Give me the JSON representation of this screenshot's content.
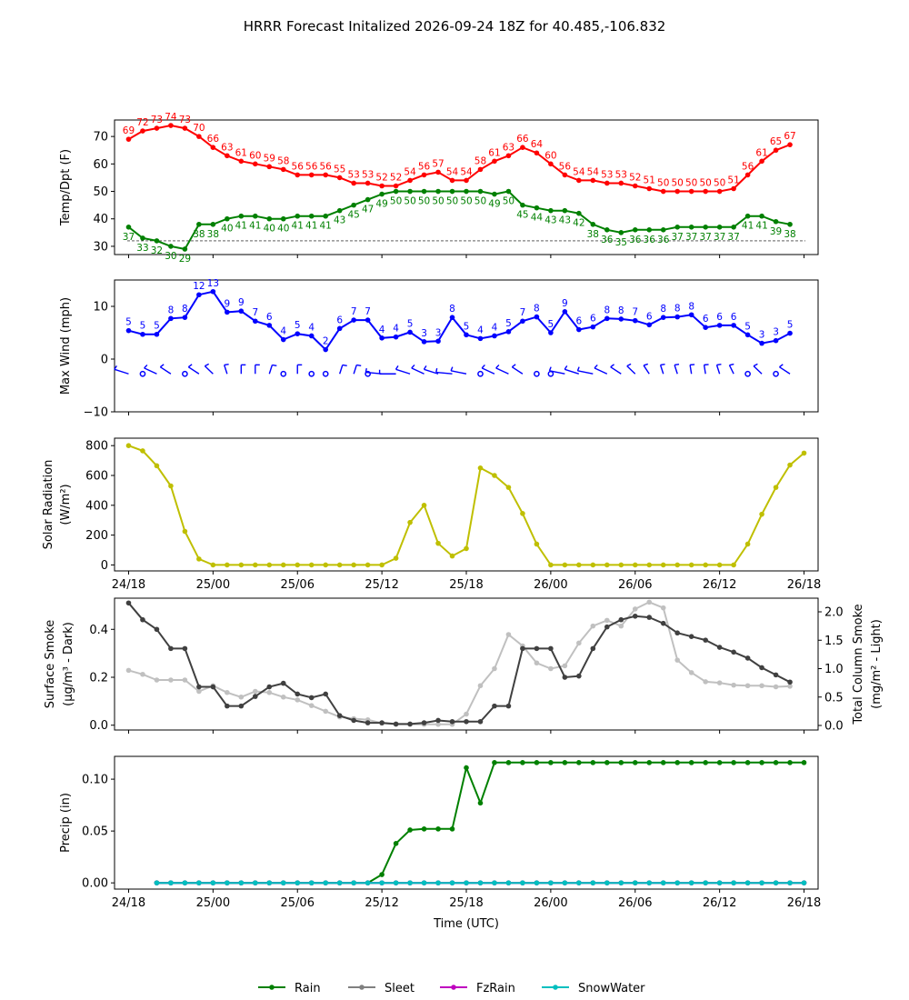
{
  "title": "HRRR Forecast Initalized 2026-09-24 18Z for 40.485,-106.832",
  "colors": {
    "temp": "#ff0000",
    "dewpoint": "#008000",
    "wind": "#0000ff",
    "solar": "#bfbf00",
    "smoke_surface": "#404040",
    "smoke_column": "#c0c0c0",
    "rain": "#008000",
    "sleet": "#808080",
    "fzrain": "#bf00bf",
    "snowwater": "#00bfbf"
  },
  "chart_data": [
    {
      "type": "line",
      "panel": "temp",
      "ylabel": "Temp/Dpt (F)",
      "ylim": [
        27,
        76
      ],
      "yticks": [
        "30",
        "40",
        "50",
        "60",
        "70"
      ],
      "x_start_hour": 0,
      "series": [
        {
          "key": "temp",
          "values": [
            69,
            72,
            73,
            74,
            73,
            70,
            66,
            63,
            61,
            60,
            59,
            58,
            56,
            56,
            56,
            55,
            53,
            53,
            52,
            52,
            54,
            56,
            57,
            54,
            54,
            58,
            61,
            63,
            66,
            64,
            60,
            56,
            54,
            54,
            53,
            53,
            52,
            51,
            50,
            50,
            50,
            50,
            50,
            51,
            56,
            61,
            65,
            67
          ]
        },
        {
          "key": "dewpoint",
          "values": [
            37,
            33,
            32,
            30,
            29,
            38,
            38,
            40,
            41,
            41,
            40,
            40,
            41,
            41,
            41,
            43,
            45,
            47,
            49,
            50,
            50,
            50,
            50,
            50,
            50,
            50,
            49,
            50,
            45,
            44,
            43,
            43,
            42,
            38,
            36,
            35,
            36,
            36,
            36,
            37,
            37,
            37,
            37,
            37,
            41,
            41,
            39,
            38
          ]
        }
      ],
      "labels": {
        "temp": [
          "69",
          "72",
          "73",
          "74",
          "73",
          "70",
          "66",
          "63",
          "61",
          "60",
          "59",
          "58",
          "56",
          "56",
          "56",
          "55",
          "53",
          "53",
          "52",
          "52",
          "54",
          "56",
          "57",
          "54",
          "54",
          "58",
          "61",
          "63",
          "66",
          "64",
          "60",
          "56",
          "54",
          "54",
          "53",
          "53",
          "52",
          "51",
          "50",
          "50",
          "50",
          "50",
          "50",
          "51",
          "56",
          "61",
          "65",
          "67"
        ],
        "dewpoint": [
          "37",
          "33",
          "32",
          "30",
          "29",
          "38",
          "38",
          "40",
          "41",
          "41",
          "40",
          "40",
          "41",
          "41",
          "41",
          "43",
          "45",
          "47",
          "49",
          "50",
          "50",
          "50",
          "50",
          "50",
          "50",
          "50",
          "49",
          "50",
          "45",
          "44",
          "43",
          "43",
          "42",
          "38",
          "36",
          "35",
          "36",
          "36",
          "36",
          "37",
          "37",
          "37",
          "37",
          "37",
          "41",
          "41",
          "39",
          "38"
        ]
      },
      "reference_line": 32
    },
    {
      "type": "line",
      "panel": "wind",
      "ylabel": "Max Wind (mph)",
      "ylim": [
        -10,
        15
      ],
      "yticks": [
        "−10",
        "0",
        "10"
      ],
      "x_start_hour": 0,
      "series": [
        {
          "key": "wind",
          "values": [
            5.4,
            4.7,
            4.7,
            7.7,
            7.9,
            12.2,
            12.8,
            8.9,
            9.1,
            7.2,
            6.4,
            3.7,
            4.8,
            4.4,
            1.8,
            5.8,
            7.4,
            7.4,
            4.0,
            4.2,
            5.1,
            3.3,
            3.4,
            7.9,
            4.6,
            3.9,
            4.4,
            5.2,
            7.2,
            8.0,
            5.0,
            9.0,
            5.6,
            6.1,
            7.7,
            7.6,
            7.3,
            6.5,
            7.9,
            8.0,
            8.4,
            6.0,
            6.4,
            6.4,
            4.6,
            3.0,
            3.5,
            4.9
          ]
        }
      ],
      "labels": {
        "wind": [
          "5",
          "5",
          "5",
          "8",
          "8",
          "12",
          "13",
          "9",
          "9",
          "7",
          "6",
          "4",
          "5",
          "4",
          "2",
          "6",
          "7",
          "7",
          "4",
          "4",
          "5",
          "3",
          "3",
          "8",
          "5",
          "4",
          "4",
          "5",
          "7",
          "8",
          "5",
          "9",
          "6",
          "6",
          "8",
          "8",
          "7",
          "6",
          "8",
          "8",
          "8",
          "6",
          "6",
          "6",
          "5",
          "3",
          "3",
          "5"
        ]
      },
      "barb_directions_deg": [
        300,
        null,
        310,
        320,
        null,
        320,
        330,
        350,
        0,
        0,
        10,
        null,
        0,
        null,
        null,
        10,
        10,
        null,
        280,
        270,
        300,
        310,
        300,
        280,
        290,
        null,
        310,
        310,
        320,
        null,
        null,
        290,
        300,
        290,
        310,
        320,
        330,
        340,
        350,
        350,
        355,
        355,
        350,
        345,
        null,
        330,
        null,
        320
      ]
    },
    {
      "type": "line",
      "panel": "solar",
      "ylabel": "Solar Radiation (W/m²)",
      "ylim": [
        -40,
        850
      ],
      "yticks": [
        "0",
        "200",
        "400",
        "600",
        "800"
      ],
      "x_start_hour": 0,
      "series": [
        {
          "key": "solar",
          "values": [
            800,
            765,
            665,
            530,
            225,
            40,
            0,
            0,
            0,
            0,
            0,
            0,
            0,
            0,
            0,
            0,
            0,
            0,
            0,
            45,
            285,
            400,
            145,
            60,
            110,
            650,
            600,
            520,
            345,
            140,
            0,
            0,
            0,
            0,
            0,
            0,
            0,
            0,
            0,
            0,
            0,
            0,
            0,
            0,
            140,
            340,
            520,
            670,
            750
          ]
        }
      ]
    },
    {
      "type": "line",
      "panel": "smoke",
      "ylabel": "Surface Smoke (μg/m³ - Dark)",
      "ylabel_right": "Total Column Smoke (mg/m² - Light)",
      "ylim": [
        -0.02,
        0.53
      ],
      "ylim_right": [
        -0.08,
        2.24
      ],
      "yticks": [
        "0.0",
        "0.2",
        "0.4"
      ],
      "yticks_right": [
        "0.0",
        "0.5",
        "1.0",
        "1.5",
        "2.0"
      ],
      "x_start_hour": 0,
      "series": [
        {
          "key": "smoke_surface",
          "axis": "left",
          "values": [
            0.51,
            0.44,
            0.4,
            0.32,
            0.32,
            0.16,
            0.16,
            0.08,
            0.08,
            0.12,
            0.16,
            0.175,
            0.13,
            0.115,
            0.13,
            0.04,
            0.02,
            0.01,
            0.01,
            0.005,
            0.005,
            0.01,
            0.02,
            0.015,
            0.015,
            0.015,
            0.08,
            0.08,
            0.32,
            0.32,
            0.32,
            0.2,
            0.205,
            0.32,
            0.41,
            0.44,
            0.455,
            0.45,
            0.425,
            0.385,
            0.37,
            0.355,
            0.325,
            0.305,
            0.28,
            0.24,
            0.21,
            0.18
          ]
        },
        {
          "key": "smoke_column",
          "axis": "right",
          "values": [
            0.97,
            0.9,
            0.8,
            0.8,
            0.8,
            0.6,
            0.7,
            0.58,
            0.5,
            0.6,
            0.58,
            0.5,
            0.45,
            0.35,
            0.25,
            0.15,
            0.12,
            0.1,
            0.04,
            0.02,
            0.02,
            0.02,
            0.02,
            0.02,
            0.2,
            0.7,
            1.0,
            1.6,
            1.4,
            1.1,
            1.0,
            1.05,
            1.45,
            1.75,
            1.85,
            1.75,
            2.05,
            2.17,
            2.07,
            1.15,
            0.93,
            0.77,
            0.75,
            0.71,
            0.7,
            0.7,
            0.68,
            0.69
          ]
        }
      ]
    },
    {
      "type": "line",
      "panel": "precip",
      "ylabel": "Precip (in)",
      "xlabel": "Time (UTC)",
      "ylim": [
        -0.006,
        0.122
      ],
      "yticks": [
        "0.00",
        "0.05",
        "0.10"
      ],
      "x_start_hour": 2,
      "series": [
        {
          "key": "rain",
          "name": "Rain",
          "values": [
            0,
            0,
            0,
            0,
            0,
            0,
            0,
            0,
            0,
            0,
            0,
            0,
            0,
            0,
            0,
            0,
            0.008,
            0.038,
            0.051,
            0.052,
            0.052,
            0.052,
            0.111,
            0.077,
            0.116,
            0.116,
            0.116,
            0.116,
            0.116,
            0.116,
            0.116,
            0.116,
            0.116,
            0.116,
            0.116,
            0.116,
            0.116,
            0.116,
            0.116,
            0.116,
            0.116,
            0.116,
            0.116,
            0.116,
            0.116,
            0.116,
            0.116
          ]
        },
        {
          "key": "sleet",
          "name": "Sleet",
          "values": [
            0,
            0,
            0,
            0,
            0,
            0,
            0,
            0,
            0,
            0,
            0,
            0,
            0,
            0,
            0,
            0,
            0,
            0,
            0,
            0,
            0,
            0,
            0,
            0,
            0,
            0,
            0,
            0,
            0,
            0,
            0,
            0,
            0,
            0,
            0,
            0,
            0,
            0,
            0,
            0,
            0,
            0,
            0,
            0,
            0,
            0,
            0
          ]
        },
        {
          "key": "fzrain",
          "name": "FzRain",
          "values": [
            0,
            0,
            0,
            0,
            0,
            0,
            0,
            0,
            0,
            0,
            0,
            0,
            0,
            0,
            0,
            0,
            0,
            0,
            0,
            0,
            0,
            0,
            0,
            0,
            0,
            0,
            0,
            0,
            0,
            0,
            0,
            0,
            0,
            0,
            0,
            0,
            0,
            0,
            0,
            0,
            0,
            0,
            0,
            0,
            0,
            0,
            0
          ]
        },
        {
          "key": "snowwater",
          "name": "SnowWater",
          "values": [
            0,
            0,
            0,
            0,
            0,
            0,
            0,
            0,
            0,
            0,
            0,
            0,
            0,
            0,
            0,
            0,
            0,
            0,
            0,
            0,
            0,
            0,
            0,
            0,
            0,
            0,
            0,
            0,
            0,
            0,
            0,
            0,
            0,
            0,
            0,
            0,
            0,
            0,
            0,
            0,
            0,
            0,
            0,
            0,
            0,
            0,
            0
          ]
        }
      ]
    }
  ],
  "x_axis": {
    "xlim_hours": [
      0,
      48
    ],
    "ticks": [
      {
        "hour": 0,
        "label": "24/18"
      },
      {
        "hour": 6,
        "label": "25/00"
      },
      {
        "hour": 12,
        "label": "25/06"
      },
      {
        "hour": 18,
        "label": "25/12"
      },
      {
        "hour": 24,
        "label": "25/18"
      },
      {
        "hour": 30,
        "label": "26/00"
      },
      {
        "hour": 36,
        "label": "26/06"
      },
      {
        "hour": 42,
        "label": "26/12"
      },
      {
        "hour": 48,
        "label": "26/18"
      }
    ],
    "labeled_panels": [
      "solar",
      "precip"
    ]
  },
  "legend": {
    "placement": "bottom-center",
    "entries": [
      {
        "key": "rain",
        "label": "Rain"
      },
      {
        "key": "sleet",
        "label": "Sleet"
      },
      {
        "key": "fzrain",
        "label": "FzRain"
      },
      {
        "key": "snowwater",
        "label": "SnowWater"
      }
    ]
  }
}
